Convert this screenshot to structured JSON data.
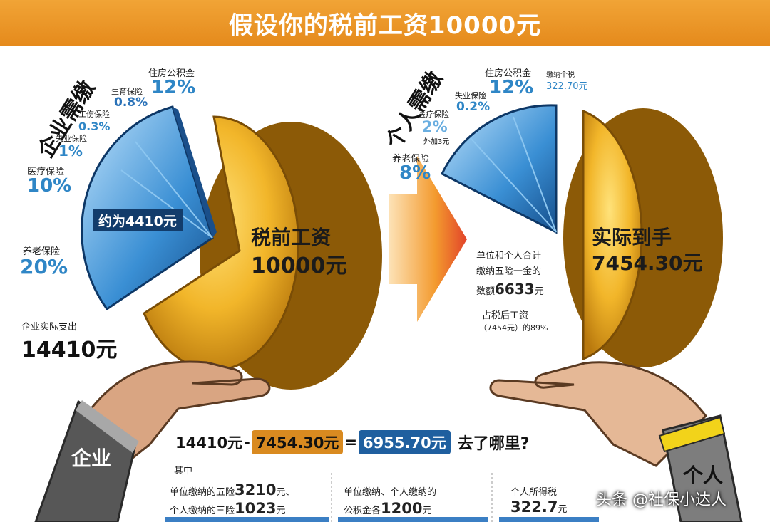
{
  "header": {
    "title": "假设你的税前工资10000元"
  },
  "left": {
    "heading": "企业需缴",
    "items": [
      {
        "name": "住房公积金",
        "pct": "12%"
      },
      {
        "name": "生育保险",
        "pct": "0.8%"
      },
      {
        "name": "工伤保险",
        "pct": "0.3%"
      },
      {
        "name": "失业保险",
        "pct": "1%"
      },
      {
        "name": "医疗保险",
        "pct": "10%"
      },
      {
        "name": "养老保险",
        "pct": "20%"
      }
    ],
    "pie_label": "约为4410元",
    "coin_line1": "税前工资",
    "coin_line2": "10000元",
    "expense_label": "企业实际支出",
    "expense_value": "14410元",
    "hand_label": "企业"
  },
  "right": {
    "heading": "个人需缴",
    "items": [
      {
        "name": "住房公积金",
        "pct": "12%"
      },
      {
        "name": "缴纳个税",
        "pct": "322.70元"
      },
      {
        "name": "失业保险",
        "pct": "0.2%"
      },
      {
        "name": "医疗保险",
        "pct": "2%"
      },
      {
        "name": "外加3元",
        "pct": ""
      },
      {
        "name": "养老保险",
        "pct": "8%"
      }
    ],
    "coin_line1": "实际到手",
    "coin_line2": "7454.30元",
    "note1": "单位和个人合计",
    "note2": "缴纳五险一金的",
    "note3_prefix": "数额",
    "note3_value": "6633",
    "note3_suffix": "元",
    "note4": "占税后工资",
    "note5": "（7454元）的89%",
    "hand_label": "个人"
  },
  "equation": {
    "a": "14410元",
    "op1": "-",
    "b": "7454.30元",
    "op2": "=",
    "c": "6955.70元",
    "tail": "去了哪里?"
  },
  "bottom": {
    "intro": "其中",
    "col1_line1_prefix": "单位缴纳的五险",
    "col1_line1_value": "3210",
    "col1_line1_suffix": "元、",
    "col1_line2_prefix": "个人缴纳的三险",
    "col1_line2_value": "1023",
    "col1_line2_suffix": "元",
    "col2_line1": "单位缴纳、个人缴纳的",
    "col2_line2_prefix": "公积金各",
    "col2_line2_value": "1200",
    "col2_line2_suffix": "元",
    "col3_line1": "个人所得税",
    "col3_line2_value": "322.7",
    "col3_line2_suffix": "元"
  },
  "watermark": "头条 @社保小达人",
  "colors": {
    "header": "#e8921f",
    "blue": "#2f86c6",
    "gold": "#f0b52a",
    "pill_orange": "#d98a20",
    "pill_blue": "#1f5f9f"
  }
}
